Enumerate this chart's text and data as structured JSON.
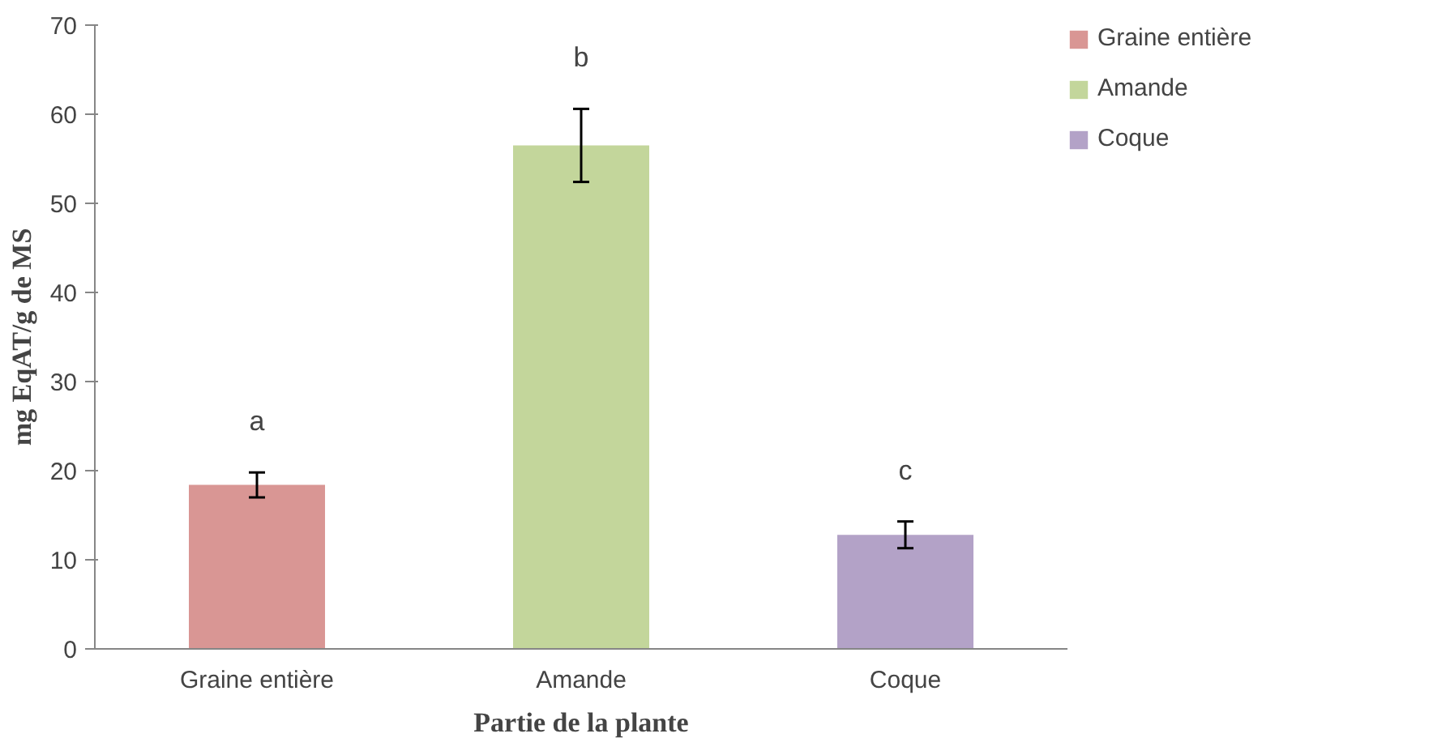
{
  "chart_data": {
    "type": "bar",
    "ylabel": "mg EqAT/g de MS",
    "xlabel": "Partie de la plante",
    "categories": [
      "Graine entière",
      "Amande",
      "Coque"
    ],
    "series": [
      {
        "name": "Graine entière",
        "color": "#d99694",
        "values": [
          18.4,
          null,
          null
        ],
        "errors": [
          1.4,
          null,
          null
        ]
      },
      {
        "name": "Amande",
        "color": "#c3d69b",
        "values": [
          null,
          56.5,
          null
        ],
        "errors": [
          null,
          4.1,
          null
        ]
      },
      {
        "name": "Coque",
        "color": "#b3a2c7",
        "values": [
          null,
          null,
          12.8
        ],
        "errors": [
          null,
          null,
          1.5
        ]
      }
    ],
    "annotations": [
      "a",
      "b",
      "c"
    ],
    "ylim": [
      0,
      70
    ],
    "yticks": [
      0,
      10,
      20,
      30,
      40,
      50,
      60,
      70
    ],
    "grid": false,
    "legend": "top right"
  }
}
